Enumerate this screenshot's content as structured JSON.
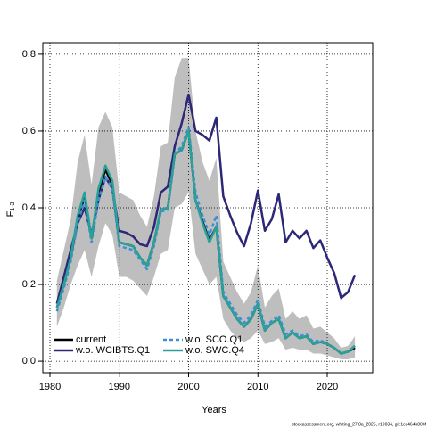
{
  "chart_data": {
    "type": "line",
    "ylabel": {
      "main": "F",
      "sub": "1-3"
    },
    "xlabel": "Years",
    "footer": "stockassessment.org, whiting_27.8a_2025, r19034, git:1cc464b806f",
    "x": [
      1981,
      1982,
      1983,
      1984,
      1985,
      1986,
      1987,
      1988,
      1989,
      1990,
      1991,
      1992,
      1993,
      1994,
      1995,
      1996,
      1997,
      1998,
      1999,
      2000,
      2001,
      2002,
      2003,
      2004,
      2005,
      2006,
      2007,
      2008,
      2009,
      2010,
      2011,
      2012,
      2013,
      2014,
      2015,
      2016,
      2017,
      2018,
      2019,
      2020,
      2021,
      2022,
      2023,
      2024
    ],
    "interval": {
      "color": "#bebebe",
      "lower": [
        0.09,
        0.14,
        0.2,
        0.25,
        0.29,
        0.22,
        0.3,
        0.36,
        0.33,
        0.22,
        0.22,
        0.21,
        0.19,
        0.17,
        0.22,
        0.28,
        0.29,
        0.4,
        0.41,
        0.44,
        0.28,
        0.24,
        0.2,
        0.22,
        0.11,
        0.08,
        0.06,
        0.05,
        0.06,
        0.08,
        0.045,
        0.05,
        0.06,
        0.03,
        0.035,
        0.03,
        0.03,
        0.02,
        0.02,
        0.015,
        0.01,
        0.005,
        0.005,
        0.01
      ],
      "upper": [
        0.21,
        0.29,
        0.37,
        0.52,
        0.59,
        0.46,
        0.61,
        0.65,
        0.61,
        0.44,
        0.43,
        0.42,
        0.38,
        0.35,
        0.43,
        0.56,
        0.57,
        0.74,
        0.79,
        0.79,
        0.6,
        0.52,
        0.47,
        0.53,
        0.26,
        0.22,
        0.18,
        0.15,
        0.18,
        0.25,
        0.14,
        0.17,
        0.19,
        0.11,
        0.13,
        0.11,
        0.12,
        0.085,
        0.09,
        0.075,
        0.06,
        0.035,
        0.04,
        0.065
      ]
    },
    "series": [
      {
        "name": "current",
        "color": "#000000",
        "dash": false,
        "values": [
          0.14,
          0.2,
          0.27,
          0.37,
          0.43,
          0.32,
          0.44,
          0.5,
          0.46,
          0.31,
          0.305,
          0.3,
          0.27,
          0.25,
          0.31,
          0.395,
          0.4,
          0.54,
          0.55,
          0.6,
          0.42,
          0.365,
          0.315,
          0.35,
          0.17,
          0.14,
          0.11,
          0.09,
          0.11,
          0.15,
          0.08,
          0.1,
          0.11,
          0.06,
          0.075,
          0.06,
          0.065,
          0.045,
          0.05,
          0.045,
          0.035,
          0.02,
          0.025,
          0.035
        ]
      },
      {
        "name": "w.o. WCIBTS.Q1",
        "color": "#2c2777",
        "dash": false,
        "values": [
          0.15,
          0.22,
          0.29,
          0.36,
          0.4,
          0.33,
          0.42,
          0.48,
          0.45,
          0.34,
          0.335,
          0.325,
          0.305,
          0.3,
          0.35,
          0.44,
          0.455,
          0.56,
          0.62,
          0.695,
          0.6,
          0.59,
          0.575,
          0.635,
          0.43,
          0.38,
          0.335,
          0.3,
          0.36,
          0.445,
          0.34,
          0.37,
          0.435,
          0.31,
          0.34,
          0.32,
          0.34,
          0.295,
          0.315,
          0.27,
          0.23,
          0.165,
          0.18,
          0.225
        ]
      },
      {
        "name": "w.o. SCO.Q1",
        "color": "#3b8fd8",
        "dash": true,
        "values": [
          0.13,
          0.19,
          0.26,
          0.36,
          0.42,
          0.31,
          0.42,
          0.48,
          0.45,
          0.3,
          0.295,
          0.29,
          0.265,
          0.24,
          0.3,
          0.39,
          0.395,
          0.54,
          0.56,
          0.61,
          0.44,
          0.38,
          0.33,
          0.38,
          0.18,
          0.15,
          0.12,
          0.1,
          0.12,
          0.16,
          0.09,
          0.105,
          0.12,
          0.07,
          0.08,
          0.065,
          0.07,
          0.05,
          0.055,
          0.045,
          0.035,
          0.02,
          0.025,
          0.04
        ]
      },
      {
        "name": "w.o. SWC.Q4",
        "color": "#2aa198",
        "dash": false,
        "values": [
          0.14,
          0.2,
          0.27,
          0.38,
          0.44,
          0.32,
          0.45,
          0.51,
          0.47,
          0.31,
          0.305,
          0.3,
          0.27,
          0.25,
          0.31,
          0.395,
          0.4,
          0.54,
          0.55,
          0.6,
          0.42,
          0.36,
          0.31,
          0.35,
          0.17,
          0.14,
          0.11,
          0.09,
          0.11,
          0.15,
          0.08,
          0.1,
          0.11,
          0.06,
          0.075,
          0.06,
          0.065,
          0.045,
          0.05,
          0.045,
          0.035,
          0.02,
          0.025,
          0.04
        ]
      }
    ],
    "xlim": [
      1978.97,
      2026.56
    ],
    "ylim": [
      -0.03,
      0.83
    ],
    "xticks": [
      1980,
      1990,
      2000,
      2010,
      2020
    ],
    "yticks": [
      {
        "value": 0,
        "label": "0.0"
      },
      {
        "value": 0.2,
        "label": "0.2"
      },
      {
        "value": 0.4,
        "label": "0.4"
      },
      {
        "value": 0.6,
        "label": "0.6"
      },
      {
        "value": 0.8,
        "label": "0.8"
      }
    ],
    "grid": true,
    "legend": "bottom-left"
  }
}
